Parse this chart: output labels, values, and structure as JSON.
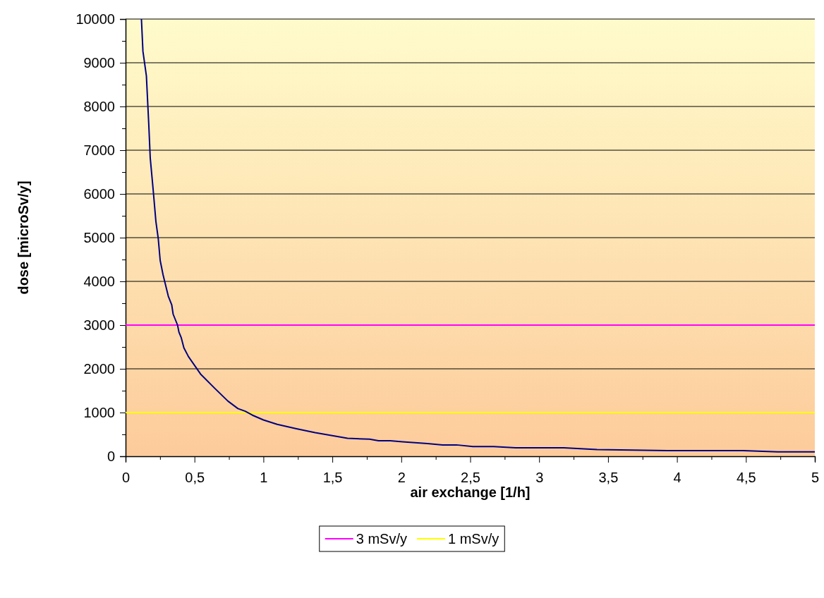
{
  "chart_data": {
    "type": "line",
    "xlabel": "air exchange [1/h]",
    "ylabel": "dose [microSv/y]",
    "xlim": [
      0,
      5
    ],
    "ylim": [
      0,
      10000
    ],
    "xticks": [
      0,
      {
        "value": 0.25,
        "label": null
      },
      {
        "value": 0.5,
        "label": "0,5"
      },
      {
        "value": 0.75,
        "label": null
      },
      1,
      {
        "value": 1.25,
        "label": null
      },
      {
        "value": 1.5,
        "label": "1,5"
      },
      {
        "value": 1.75,
        "label": null
      },
      2,
      {
        "value": 2.25,
        "label": null
      },
      {
        "value": 2.5,
        "label": "2,5"
      },
      {
        "value": 2.75,
        "label": null
      },
      3,
      {
        "value": 3.25,
        "label": null
      },
      {
        "value": 3.5,
        "label": "3,5"
      },
      {
        "value": 3.75,
        "label": null
      },
      4,
      {
        "value": 4.25,
        "label": null
      },
      {
        "value": 4.5,
        "label": "4,5"
      },
      {
        "value": 4.75,
        "label": null
      },
      5
    ],
    "yticks": [
      0,
      {
        "value": 500,
        "label": null
      },
      1000,
      {
        "value": 1500,
        "label": null
      },
      2000,
      {
        "value": 2500,
        "label": null
      },
      3000,
      {
        "value": 3500,
        "label": null
      },
      4000,
      {
        "value": 4500,
        "label": null
      },
      5000,
      {
        "value": 5500,
        "label": null
      },
      6000,
      {
        "value": 6500,
        "label": null
      },
      7000,
      {
        "value": 7500,
        "label": null
      },
      8000,
      {
        "value": 8500,
        "label": null
      },
      9000,
      {
        "value": 9500,
        "label": null
      },
      10000
    ],
    "grid": "y",
    "legend": "bottom",
    "marker": "none",
    "line_style": "solid",
    "series": [
      {
        "color": "#000080",
        "x": [
          0.115,
          0.126,
          0.151,
          0.168,
          0.179,
          0.2,
          0.22,
          0.237,
          0.251,
          0.272,
          0.31,
          0.335,
          0.345,
          0.377,
          0.387,
          0.404,
          0.423,
          0.456,
          0.544,
          0.648,
          0.743,
          0.815,
          0.868,
          0.92,
          1.0,
          1.1,
          1.24,
          1.375,
          1.61,
          1.77,
          1.835,
          1.92,
          2.01,
          2.19,
          2.3,
          2.4,
          2.52,
          2.67,
          2.83,
          3.18,
          3.42,
          3.93,
          4.48,
          4.73,
          5.0
        ],
        "values": [
          10000,
          9260,
          8700,
          7610,
          6820,
          6100,
          5370,
          4980,
          4480,
          4150,
          3660,
          3460,
          3250,
          3000,
          2840,
          2710,
          2480,
          2280,
          1880,
          1550,
          1260,
          1090,
          1030,
          940,
          830,
          730,
          630,
          540,
          410,
          390,
          355,
          355,
          330,
          290,
          260,
          260,
          220,
          220,
          195,
          195,
          155,
          130,
          130,
          100,
          100
        ]
      },
      {
        "name": "3 mSv/y",
        "color": "#ff00ff",
        "x": [
          0,
          5
        ],
        "values": [
          3000,
          3000
        ]
      },
      {
        "name": "1 mSv/y",
        "color": "#ffff00",
        "x": [
          0,
          5
        ],
        "values": [
          1000,
          1000
        ]
      }
    ]
  }
}
